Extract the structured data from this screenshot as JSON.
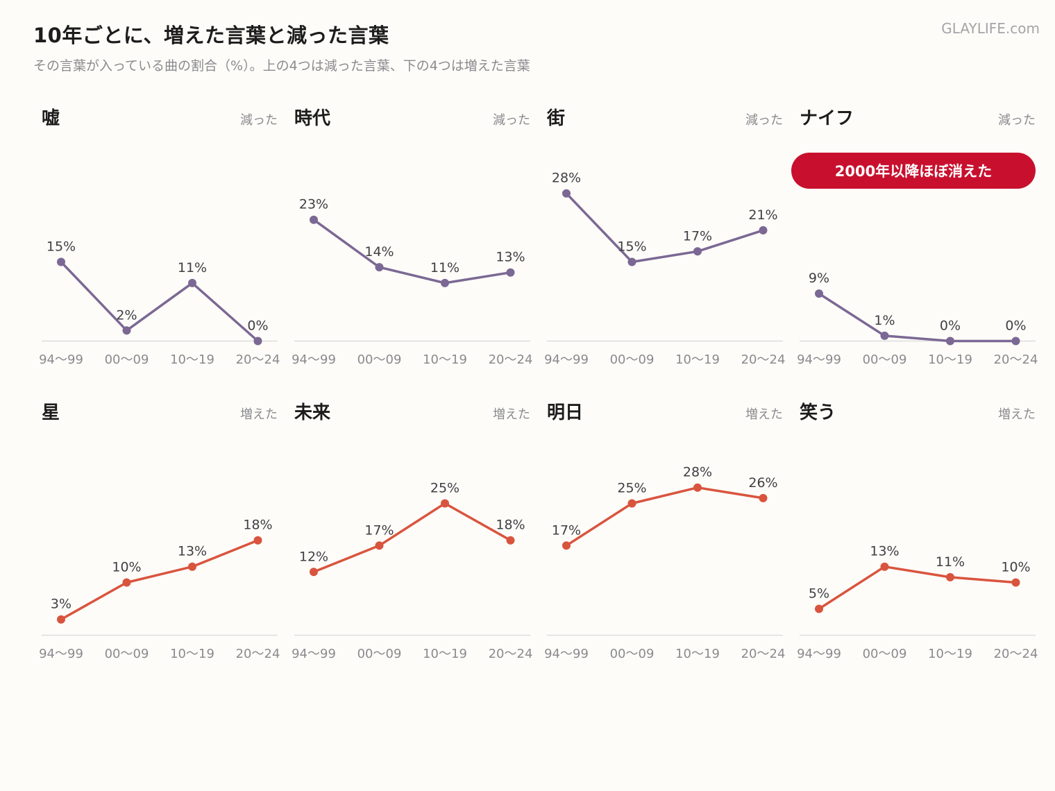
{
  "header": {
    "title": "10年ごとに、増えた言葉と減った言葉",
    "subtitle": "その言葉が入っている曲の割合（%）。上の4つは減った言葉、下の4つは増えた言葉",
    "site": "GLAYLIFE.com"
  },
  "colors": {
    "decreased": "#7b6894",
    "increased": "#d9543e",
    "note_bg": "#c8102e",
    "baseline": "#dddddd"
  },
  "chart_data": [
    {
      "type": "line",
      "title": "嘘",
      "trend": "減った",
      "x": [
        "94〜99",
        "00〜09",
        "10〜19",
        "20〜24"
      ],
      "values": [
        15,
        2,
        11,
        0
      ],
      "labels": [
        "15%",
        "2%",
        "11%",
        "0%"
      ],
      "ylim": [
        0,
        30
      ],
      "color": "#7b6894"
    },
    {
      "type": "line",
      "title": "時代",
      "trend": "減った",
      "x": [
        "94〜99",
        "00〜09",
        "10〜19",
        "20〜24"
      ],
      "values": [
        23,
        14,
        11,
        13
      ],
      "labels": [
        "23%",
        "14%",
        "11%",
        "13%"
      ],
      "ylim": [
        0,
        30
      ],
      "color": "#7b6894"
    },
    {
      "type": "line",
      "title": "街",
      "trend": "減った",
      "x": [
        "94〜99",
        "00〜09",
        "10〜19",
        "20〜24"
      ],
      "values": [
        28,
        15,
        17,
        21
      ],
      "labels": [
        "28%",
        "15%",
        "17%",
        "21%"
      ],
      "ylim": [
        0,
        30
      ],
      "color": "#7b6894"
    },
    {
      "type": "line",
      "title": "ナイフ",
      "trend": "減った",
      "x": [
        "94〜99",
        "00〜09",
        "10〜19",
        "20〜24"
      ],
      "values": [
        9,
        1,
        0,
        0
      ],
      "labels": [
        "9%",
        "1%",
        "0%",
        "0%"
      ],
      "ylim": [
        0,
        30
      ],
      "color": "#7b6894",
      "annotation": "2000年以降ほぼ消えた"
    },
    {
      "type": "line",
      "title": "星",
      "trend": "増えた",
      "x": [
        "94〜99",
        "00〜09",
        "10〜19",
        "20〜24"
      ],
      "values": [
        3,
        10,
        13,
        18
      ],
      "labels": [
        "3%",
        "10%",
        "13%",
        "18%"
      ],
      "ylim": [
        0,
        30
      ],
      "color": "#d9543e"
    },
    {
      "type": "line",
      "title": "未来",
      "trend": "増えた",
      "x": [
        "94〜99",
        "00〜09",
        "10〜19",
        "20〜24"
      ],
      "values": [
        12,
        17,
        25,
        18
      ],
      "labels": [
        "12%",
        "17%",
        "25%",
        "18%"
      ],
      "ylim": [
        0,
        30
      ],
      "color": "#d9543e"
    },
    {
      "type": "line",
      "title": "明日",
      "trend": "増えた",
      "x": [
        "94〜99",
        "00〜09",
        "10〜19",
        "20〜24"
      ],
      "values": [
        17,
        25,
        28,
        26
      ],
      "labels": [
        "17%",
        "25%",
        "28%",
        "26%"
      ],
      "ylim": [
        0,
        30
      ],
      "color": "#d9543e"
    },
    {
      "type": "line",
      "title": "笑う",
      "trend": "増えた",
      "x": [
        "94〜99",
        "00〜09",
        "10〜19",
        "20〜24"
      ],
      "values": [
        5,
        13,
        11,
        10
      ],
      "labels": [
        "5%",
        "13%",
        "11%",
        "10%"
      ],
      "ylim": [
        0,
        30
      ],
      "color": "#d9543e"
    }
  ]
}
